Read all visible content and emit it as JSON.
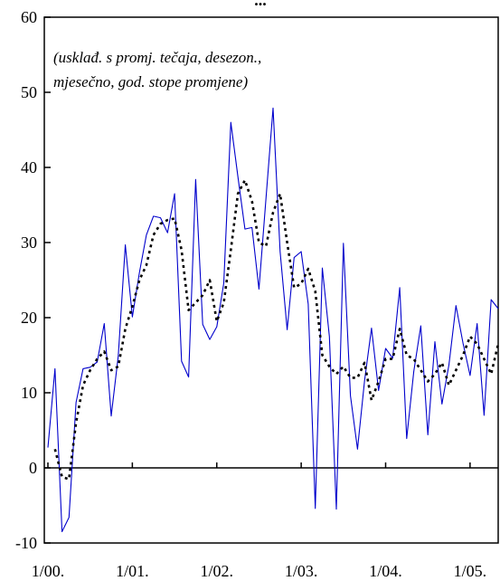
{
  "chart_data": {
    "type": "line",
    "title": "...",
    "annotation_lines": [
      "(usklađ. s promj. tečaja, desezon.,",
      "mjesečno, god. stope promjene)"
    ],
    "xlabel": "",
    "ylabel": "",
    "x_tick_labels": [
      "1/00.",
      "1/01.",
      "1/02.",
      "1/03.",
      "1/04.",
      "1/05."
    ],
    "y_ticks": [
      -10,
      0,
      10,
      20,
      30,
      40,
      50,
      60
    ],
    "ylim": [
      -10,
      60
    ],
    "x_unit": "month index (0 = 1/00.)",
    "xlim": [
      0,
      64
    ],
    "grid": false,
    "legend": "none",
    "series": [
      {
        "style": "solid",
        "color": "#0000cc",
        "x": [
          0,
          1,
          2,
          3,
          4,
          5,
          6,
          7,
          8,
          9,
          10,
          11,
          12,
          13,
          14,
          15,
          16,
          17,
          18,
          19,
          20,
          21,
          22,
          23,
          24,
          25,
          26,
          27,
          28,
          29,
          30,
          31,
          32,
          33,
          34,
          35,
          36,
          37,
          38,
          39,
          40,
          41,
          42,
          43,
          44,
          45,
          46,
          47,
          48,
          49,
          50,
          51,
          52,
          53,
          54,
          55,
          56,
          57,
          58,
          59,
          60,
          61,
          62,
          63,
          64
        ],
        "values": [
          2.7,
          13.2,
          -8.5,
          -6.6,
          8.7,
          13.2,
          13.4,
          14.1,
          19.2,
          6.9,
          14.9,
          29.7,
          20.1,
          26.0,
          31.0,
          33.5,
          33.3,
          31.3,
          36.5,
          14.2,
          12.1,
          38.4,
          19.1,
          17.1,
          18.8,
          24.6,
          46.0,
          38.8,
          31.8,
          32.0,
          23.8,
          35.9,
          47.9,
          28.8,
          18.4,
          28.0,
          28.8,
          21.8,
          -5.4,
          26.6,
          17.5,
          -5.5,
          29.9,
          9.6,
          2.5,
          11.6,
          18.6,
          10.3,
          15.9,
          14.6,
          24.0,
          3.9,
          12.8,
          18.9,
          4.4,
          16.8,
          8.5,
          13.7,
          21.6,
          16.6,
          12.3,
          19.2,
          7.0,
          22.4,
          21.2
        ]
      },
      {
        "style": "dotted",
        "color": "#000000",
        "x": [
          1,
          2,
          3,
          4,
          5,
          6,
          7,
          8,
          9,
          10,
          11,
          12,
          13,
          14,
          15,
          16,
          17,
          18,
          19,
          20,
          21,
          22,
          23,
          24,
          25,
          26,
          27,
          28,
          29,
          30,
          31,
          32,
          33,
          34,
          35,
          36,
          37,
          38,
          39,
          40,
          41,
          42,
          43,
          44,
          45,
          46,
          47,
          48,
          49,
          50,
          51,
          52,
          53,
          54,
          55,
          56,
          57,
          58,
          59,
          60,
          61,
          62,
          63,
          64
        ],
        "values": [
          2.5,
          -1.2,
          -1.5,
          6.0,
          11.0,
          13.0,
          14.5,
          15.5,
          13.0,
          13.5,
          18.5,
          21.5,
          25.0,
          27.0,
          31.0,
          32.5,
          33.0,
          33.2,
          29.0,
          21.0,
          22.0,
          23.0,
          25.0,
          19.5,
          22.0,
          29.0,
          36.5,
          38.3,
          35.5,
          30.0,
          29.5,
          34.0,
          36.5,
          30.0,
          24.0,
          24.5,
          26.5,
          23.5,
          15.0,
          13.5,
          12.5,
          13.5,
          12.0,
          12.0,
          14.0,
          9.0,
          11.5,
          14.5,
          14.5,
          18.5,
          15.0,
          14.5,
          13.0,
          11.5,
          12.5,
          14.0,
          11.0,
          13.0,
          15.0,
          17.5,
          16.5,
          14.5,
          12.5,
          16.5
        ]
      }
    ]
  }
}
